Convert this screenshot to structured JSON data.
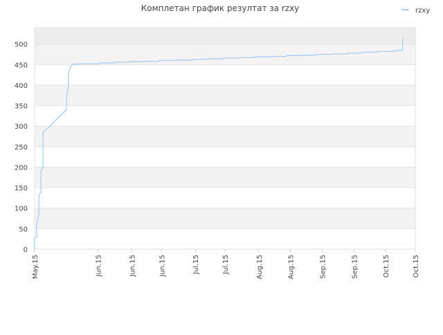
{
  "chart_data": {
    "type": "line",
    "title": "Комплетан график резултат за rzxy",
    "xlabel": "",
    "ylabel": "",
    "ylim": [
      0,
      540
    ],
    "yticks": [
      0,
      50,
      100,
      150,
      200,
      250,
      300,
      350,
      400,
      450,
      500
    ],
    "xlim": [
      "2015-05-01",
      "2015-10-28"
    ],
    "xticks": [
      {
        "date": "2015-05-01",
        "label": "May.15"
      },
      {
        "date": "2015-05-31",
        "label": "Jun.15"
      },
      {
        "date": "2015-06-16",
        "label": "Jun.15"
      },
      {
        "date": "2015-06-30",
        "label": "Jun.15"
      },
      {
        "date": "2015-07-16",
        "label": "Jul.15"
      },
      {
        "date": "2015-07-30",
        "label": "Jul.15"
      },
      {
        "date": "2015-08-15",
        "label": "Aug.15"
      },
      {
        "date": "2015-08-30",
        "label": "Aug.15"
      },
      {
        "date": "2015-09-14",
        "label": "Sep.15"
      },
      {
        "date": "2015-09-29",
        "label": "Sep.15"
      },
      {
        "date": "2015-10-14",
        "label": "Oct.15"
      },
      {
        "date": "2015-10-28",
        "label": "Oct.15"
      }
    ],
    "grid": true,
    "legend_position": "top-right",
    "series": [
      {
        "name": "rzxy",
        "color": "#a6cef2",
        "points": [
          [
            "2015-05-01",
            0
          ],
          [
            "2015-05-01",
            28
          ],
          [
            "2015-05-02",
            30
          ],
          [
            "2015-05-02",
            40
          ],
          [
            "2015-05-02",
            60
          ],
          [
            "2015-05-03",
            85
          ],
          [
            "2015-05-03",
            95
          ],
          [
            "2015-05-03",
            130
          ],
          [
            "2015-05-04",
            140
          ],
          [
            "2015-05-04",
            150
          ],
          [
            "2015-05-04",
            190
          ],
          [
            "2015-05-05",
            200
          ],
          [
            "2015-05-05",
            215
          ],
          [
            "2015-05-05",
            225
          ],
          [
            "2015-05-05",
            285
          ],
          [
            "2015-05-06",
            290
          ],
          [
            "2015-05-08",
            298
          ],
          [
            "2015-05-10",
            310
          ],
          [
            "2015-05-12",
            320
          ],
          [
            "2015-05-14",
            330
          ],
          [
            "2015-05-15",
            335
          ],
          [
            "2015-05-16",
            340
          ],
          [
            "2015-05-16",
            365
          ],
          [
            "2015-05-17",
            400
          ],
          [
            "2015-05-17",
            425
          ],
          [
            "2015-05-18",
            445
          ],
          [
            "2015-05-19",
            451
          ],
          [
            "2015-05-22",
            451
          ],
          [
            "2015-05-22",
            452
          ],
          [
            "2015-06-01",
            452
          ],
          [
            "2015-06-01",
            454
          ],
          [
            "2015-06-08",
            454
          ],
          [
            "2015-06-08",
            456
          ],
          [
            "2015-06-15",
            456
          ],
          [
            "2015-06-15",
            457
          ],
          [
            "2015-06-22",
            457
          ],
          [
            "2015-06-22",
            458
          ],
          [
            "2015-06-29",
            458
          ],
          [
            "2015-06-29",
            460
          ],
          [
            "2015-07-07",
            460
          ],
          [
            "2015-07-07",
            461
          ],
          [
            "2015-07-15",
            461
          ],
          [
            "2015-07-15",
            463
          ],
          [
            "2015-07-22",
            463
          ],
          [
            "2015-07-22",
            464
          ],
          [
            "2015-07-29",
            464
          ],
          [
            "2015-07-29",
            466
          ],
          [
            "2015-08-06",
            466
          ],
          [
            "2015-08-06",
            467
          ],
          [
            "2015-08-13",
            467
          ],
          [
            "2015-08-13",
            469
          ],
          [
            "2015-08-21",
            469
          ],
          [
            "2015-08-21",
            470
          ],
          [
            "2015-08-28",
            470
          ],
          [
            "2015-08-28",
            472
          ],
          [
            "2015-09-04",
            472
          ],
          [
            "2015-09-04",
            473
          ],
          [
            "2015-09-11",
            473
          ],
          [
            "2015-09-11",
            475
          ],
          [
            "2015-09-19",
            475
          ],
          [
            "2015-09-19",
            476
          ],
          [
            "2015-09-26",
            476
          ],
          [
            "2015-09-26",
            478
          ],
          [
            "2015-10-03",
            478
          ],
          [
            "2015-10-03",
            480
          ],
          [
            "2015-10-10",
            480
          ],
          [
            "2015-10-10",
            482
          ],
          [
            "2015-10-18",
            482
          ],
          [
            "2015-10-18",
            484
          ],
          [
            "2015-10-22",
            484
          ],
          [
            "2015-10-22",
            493
          ],
          [
            "2015-10-22",
            514
          ]
        ]
      }
    ]
  }
}
